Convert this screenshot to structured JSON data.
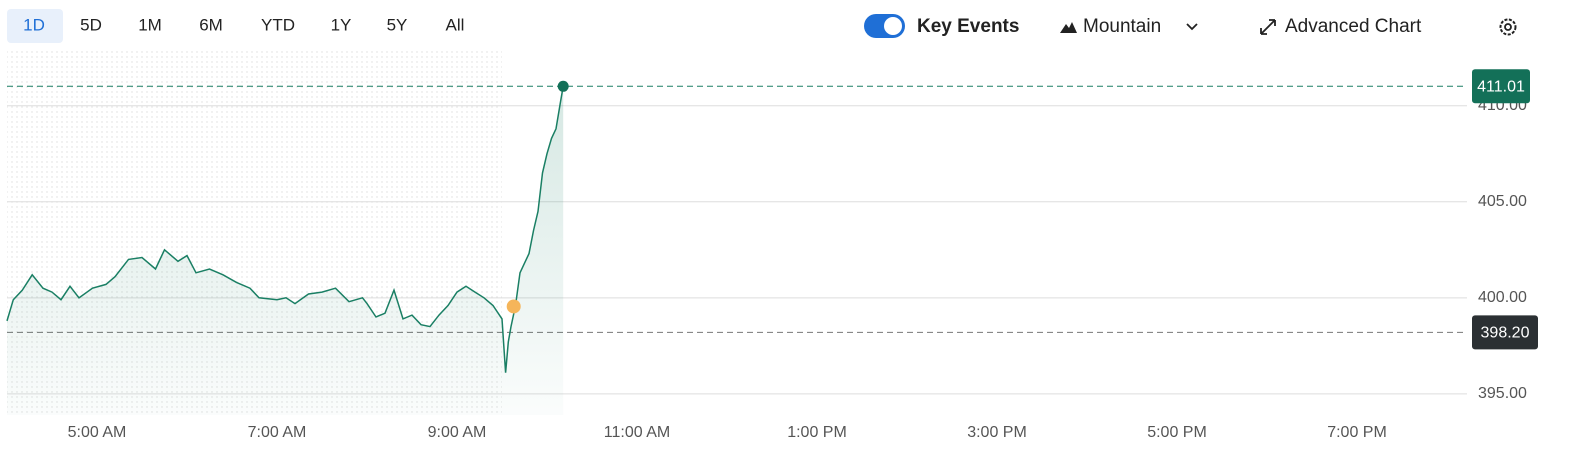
{
  "toolbar": {
    "ranges": [
      "1D",
      "5D",
      "1M",
      "6M",
      "YTD",
      "1Y",
      "5Y",
      "All"
    ],
    "selected_range": "1D",
    "key_events": "Key Events",
    "chart_style": "Mountain",
    "advanced": "Advanced Chart"
  },
  "chart_data": {
    "type": "area",
    "color": "#1a7f64",
    "x": [
      4.0,
      4.07,
      4.17,
      4.28,
      4.4,
      4.5,
      4.6,
      4.7,
      4.8,
      4.95,
      5.1,
      5.2,
      5.35,
      5.5,
      5.65,
      5.75,
      5.9,
      6.0,
      6.1,
      6.25,
      6.4,
      6.55,
      6.7,
      6.8,
      7.0,
      7.1,
      7.2,
      7.35,
      7.5,
      7.65,
      7.8,
      7.95,
      8.0,
      8.1,
      8.2,
      8.3,
      8.4,
      8.5,
      8.6,
      8.7,
      8.8,
      8.9,
      9.0,
      9.1,
      9.2,
      9.3,
      9.4,
      9.5,
      9.52,
      9.54,
      9.57,
      9.6,
      9.65,
      9.7,
      9.75,
      9.8,
      9.85,
      9.9,
      9.95,
      10.0,
      10.05,
      10.1,
      10.15,
      10.18
    ],
    "values": [
      398.8,
      399.9,
      400.4,
      401.2,
      400.5,
      400.3,
      399.9,
      400.6,
      400.0,
      400.5,
      400.7,
      401.1,
      402.0,
      402.1,
      401.5,
      402.5,
      401.9,
      402.2,
      401.3,
      401.5,
      401.2,
      400.8,
      400.5,
      400.0,
      399.9,
      400.0,
      399.7,
      400.2,
      400.3,
      400.5,
      399.8,
      400.0,
      399.7,
      399.0,
      399.2,
      400.4,
      398.9,
      399.1,
      398.6,
      398.5,
      399.1,
      399.6,
      400.3,
      400.6,
      400.3,
      400.0,
      399.6,
      398.9,
      397.5,
      396.1,
      397.7,
      398.5,
      399.6,
      401.3,
      401.8,
      402.3,
      403.5,
      404.5,
      406.5,
      407.5,
      408.3,
      408.8,
      410.2,
      411.01
    ],
    "xlim": [
      4,
      20
    ],
    "xticks": [
      {
        "value": 5,
        "label": "5:00 AM"
      },
      {
        "value": 7,
        "label": "7:00 AM"
      },
      {
        "value": 9,
        "label": "9:00 AM"
      },
      {
        "value": 11,
        "label": "11:00 AM"
      },
      {
        "value": 13,
        "label": "1:00 PM"
      },
      {
        "value": 15,
        "label": "3:00 PM"
      },
      {
        "value": 17,
        "label": "5:00 PM"
      },
      {
        "value": 19,
        "label": "7:00 PM"
      }
    ],
    "ylim": [
      393.9,
      412.9
    ],
    "yticks": [
      {
        "value": 395,
        "label": "395.00"
      },
      {
        "value": 400,
        "label": "400.00"
      },
      {
        "value": 405,
        "label": "405.00"
      },
      {
        "value": 410,
        "label": "410.00"
      }
    ],
    "grid": true,
    "premarket": [
      4,
      9.5
    ],
    "last_price": 411.01,
    "previous_close": {
      "value": 398.2,
      "label": "398.20"
    },
    "event_marker": {
      "x": 9.63,
      "y": 399.55,
      "color": "#f5b55a"
    }
  }
}
